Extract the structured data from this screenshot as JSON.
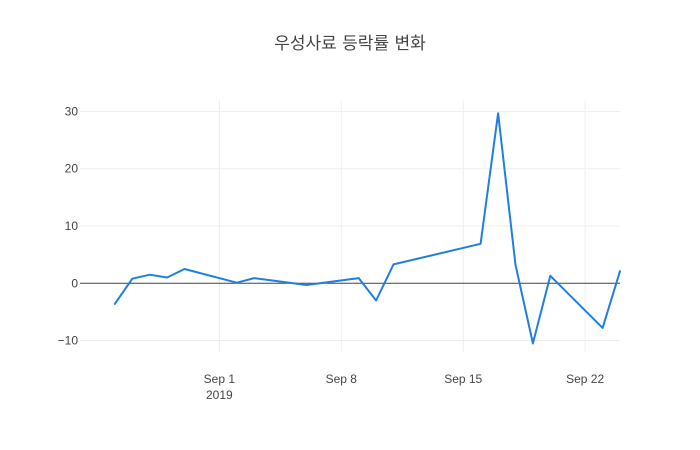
{
  "chart_data": {
    "type": "line",
    "title": "우성사료 등락률 변화",
    "xlabel": "",
    "ylabel": "",
    "x_axis": {
      "range": [
        "2019-08-24",
        "2019-09-24"
      ],
      "ticks": [
        {
          "date": "2019-09-01",
          "label": "Sep 1",
          "sublabel": "2019"
        },
        {
          "date": "2019-09-08",
          "label": "Sep 8",
          "sublabel": ""
        },
        {
          "date": "2019-09-15",
          "label": "Sep 15",
          "sublabel": ""
        },
        {
          "date": "2019-09-22",
          "label": "Sep 22",
          "sublabel": ""
        }
      ]
    },
    "y_axis": {
      "range": [
        -12,
        32
      ],
      "ticks": [
        {
          "value": 30,
          "label": "30"
        },
        {
          "value": 20,
          "label": "20"
        },
        {
          "value": 10,
          "label": "10"
        },
        {
          "value": 0,
          "label": "0"
        },
        {
          "value": -10,
          "label": "−10"
        }
      ]
    },
    "grid": true,
    "zero_line": true,
    "color": "#1f7fe0",
    "series": [
      {
        "x": [
          "2019-08-26",
          "2019-08-27",
          "2019-08-28",
          "2019-08-29",
          "2019-08-30",
          "2019-09-02",
          "2019-09-03",
          "2019-09-06",
          "2019-09-09",
          "2019-09-10",
          "2019-09-11",
          "2019-09-16",
          "2019-09-17",
          "2019-09-18",
          "2019-09-19",
          "2019-09-20",
          "2019-09-23",
          "2019-09-24"
        ],
        "y": [
          -3.6,
          0.8,
          1.5,
          1.0,
          2.5,
          0.1,
          0.9,
          -0.3,
          0.9,
          -3.0,
          3.3,
          6.9,
          29.7,
          3.2,
          -10.5,
          1.3,
          -7.8,
          2.1
        ]
      }
    ]
  }
}
